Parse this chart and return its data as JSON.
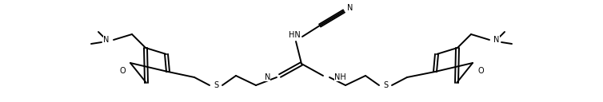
{
  "bg_color": "#ffffff",
  "line_color": "#000000",
  "line_width": 1.4,
  "font_size": 7.0,
  "figsize": [
    7.54,
    1.28
  ],
  "dpi": 100,
  "labels": {
    "N_cyano": "N",
    "HN": "HN",
    "N_left": "N",
    "NH": "NH",
    "S_left": "S",
    "S_right": "S",
    "O_left": "O",
    "O_right": "O",
    "N_nme2_left": "N",
    "N_nme2_right": "N"
  }
}
